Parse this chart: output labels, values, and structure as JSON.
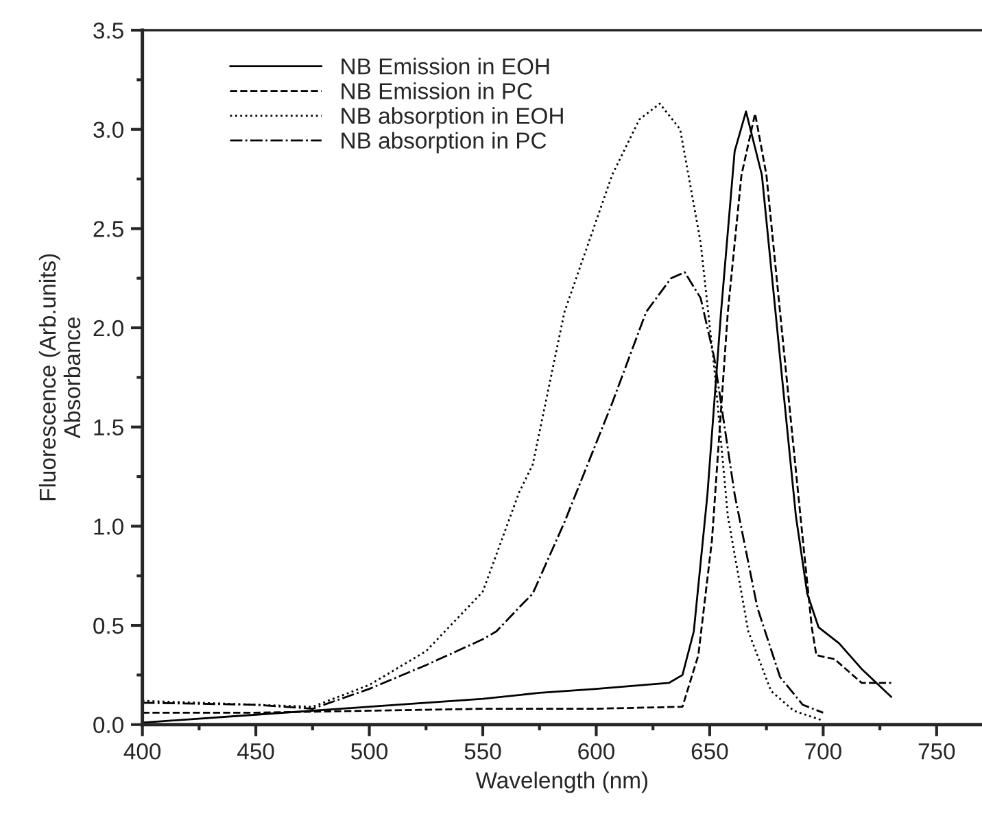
{
  "chart_data": {
    "type": "line",
    "xlabel": "Wavelength (nm)",
    "ylabel": "Fluorescence (Arb.units)\nAbsorbance",
    "xlim": [
      400,
      770
    ],
    "xticks": [
      400,
      450,
      500,
      550,
      600,
      650,
      700,
      750
    ],
    "ylim": [
      0,
      3.5
    ],
    "yticks": [
      {
        "value": 0,
        "label": "0.0"
      },
      {
        "value": 0.5,
        "label": "0.5"
      },
      {
        "value": 1,
        "label": "1.0"
      },
      {
        "value": 1.5,
        "label": "1.5"
      },
      {
        "value": 2,
        "label": "2.0"
      },
      {
        "value": 2.5,
        "label": "2.5"
      },
      {
        "value": 3,
        "label": "3.0"
      },
      {
        "value": 3.5,
        "label": "3.5"
      }
    ],
    "grid": false,
    "legend": "top left",
    "series": [
      {
        "name": "NB Emission in EOH",
        "color": "#000000",
        "line_style": "solid",
        "x": [
          400,
          450,
          500,
          550,
          575,
          600,
          632,
          638,
          643,
          649,
          655,
          661,
          666,
          673,
          681,
          688,
          693,
          698,
          707,
          717,
          730
        ],
        "values": [
          0.01,
          0.05,
          0.09,
          0.13,
          0.16,
          0.18,
          0.21,
          0.25,
          0.47,
          1.16,
          2.08,
          2.89,
          3.09,
          2.77,
          1.85,
          1.05,
          0.66,
          0.49,
          0.41,
          0.28,
          0.14
        ]
      },
      {
        "name": "NB Emission in PC",
        "color": "#000000",
        "line_style": "dashed",
        "x": [
          400,
          450,
          500,
          550,
          600,
          638,
          645,
          651,
          658,
          664,
          670,
          675,
          683,
          690,
          695,
          697,
          705,
          717,
          730
        ],
        "values": [
          0.06,
          0.06,
          0.07,
          0.08,
          0.08,
          0.09,
          0.35,
          0.93,
          2.08,
          2.77,
          3.08,
          2.77,
          1.85,
          1.05,
          0.49,
          0.35,
          0.33,
          0.21,
          0.21
        ]
      },
      {
        "name": "NB absorption in EOH",
        "color": "#000000",
        "line_style": "dotted",
        "x": [
          400,
          450,
          475,
          500,
          525,
          550,
          566,
          572,
          586,
          607,
          619,
          628,
          637,
          646,
          652,
          658,
          667,
          677,
          687,
          700
        ],
        "values": [
          0.12,
          0.1,
          0.09,
          0.2,
          0.37,
          0.67,
          1.17,
          1.31,
          2.08,
          2.77,
          3.05,
          3.13,
          3.0,
          2.43,
          1.8,
          1.05,
          0.47,
          0.17,
          0.07,
          0.02
        ]
      },
      {
        "name": "NB absorption in PC",
        "color": "#000000",
        "line_style": "dashdot",
        "x": [
          400,
          450,
          475,
          500,
          525,
          550,
          556,
          566,
          572,
          586,
          607,
          622,
          633,
          639,
          646,
          652,
          661,
          671,
          681,
          691,
          700
        ],
        "values": [
          0.11,
          0.1,
          0.08,
          0.18,
          0.3,
          0.43,
          0.47,
          0.59,
          0.66,
          1.02,
          1.62,
          2.08,
          2.25,
          2.28,
          2.15,
          1.85,
          1.16,
          0.59,
          0.24,
          0.1,
          0.06
        ]
      }
    ]
  }
}
